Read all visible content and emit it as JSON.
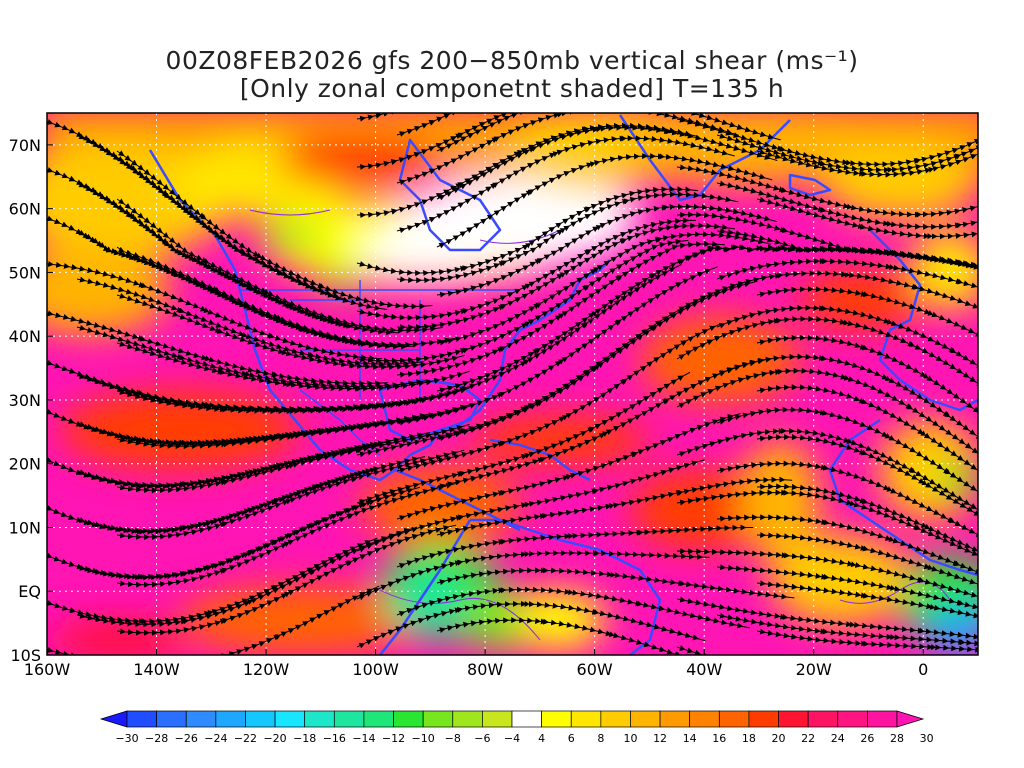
{
  "title": {
    "line1": "00Z08FEB2026 gfs 200−850mb vertical shear (ms⁻¹)",
    "line2": "[Only zonal componetnt shaded] T=135 h"
  },
  "map": {
    "lon_range": [
      -160,
      10
    ],
    "lat_range": [
      -10,
      75
    ],
    "lat_labels": [
      "70N",
      "60N",
      "50N",
      "40N",
      "30N",
      "20N",
      "10N",
      "EQ",
      "10S"
    ],
    "lat_values": [
      70,
      60,
      50,
      40,
      30,
      20,
      10,
      0,
      -10
    ],
    "lon_labels": [
      "160W",
      "140W",
      "120W",
      "100W",
      "80W",
      "60W",
      "40W",
      "20W",
      "0"
    ],
    "lon_values": [
      -160,
      -140,
      -120,
      -100,
      -80,
      -60,
      -40,
      -20,
      0
    ],
    "colors": {
      "coastline": "#3a4bff",
      "streamline": "#000000",
      "gridline": "#ffffff"
    }
  },
  "colorbar": {
    "levels": [
      "-30",
      "-28",
      "-26",
      "-24",
      "-22",
      "-20",
      "-18",
      "-16",
      "-14",
      "-12",
      "-10",
      "-8",
      "-6",
      "-4",
      "4",
      "6",
      "8",
      "10",
      "12",
      "14",
      "16",
      "18",
      "20",
      "22",
      "24",
      "26",
      "28",
      "30"
    ],
    "colors": [
      "#1a1aff",
      "#1f4dff",
      "#2a6fff",
      "#2f8cff",
      "#1ea7ff",
      "#14c8ff",
      "#18e6ff",
      "#1ee6c8",
      "#1ee6a0",
      "#1ee678",
      "#28e632",
      "#78e61e",
      "#a0e61e",
      "#c8e61e",
      "#ffffff",
      "#ffff00",
      "#ffe600",
      "#ffcc00",
      "#ffb400",
      "#ff9b00",
      "#ff8200",
      "#ff6400",
      "#ff3c00",
      "#ff1432",
      "#ff1464",
      "#ff1482",
      "#ff14a0",
      "#ff14b4"
    ]
  }
}
